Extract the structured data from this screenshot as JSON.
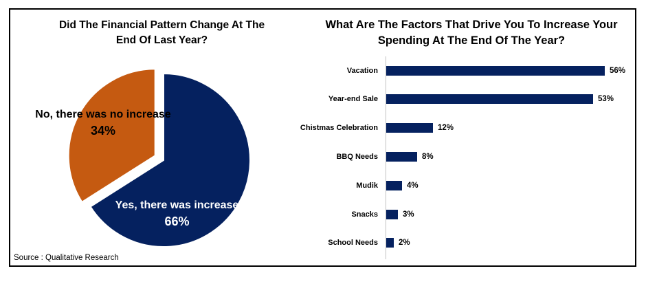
{
  "colors": {
    "navy": "#05215f",
    "orange": "#c55a11",
    "axis_gray": "#bfbfbf",
    "frame_border": "#000000",
    "background": "#ffffff",
    "pie_label_light": "#ffffff",
    "pie_label_dark": "#000000"
  },
  "footer": {
    "source_note": "Source : Qualitative Research"
  },
  "chart_data": [
    {
      "type": "pie",
      "title": "Did The Financial Pattern Change At The End Of Last Year?",
      "title_lines": [
        "Did The Financial Pattern Change At The",
        "End Of Last Year?"
      ],
      "direction": "clockwise",
      "start_angle_deg": 0,
      "legend": "none",
      "labels_on_slices": true,
      "slices": [
        {
          "label": "Yes, there was increase",
          "value": 66,
          "pct_label": "66%",
          "color": "#05215f",
          "exploded": false,
          "label_color": "#ffffff"
        },
        {
          "label": "No, there was no increase",
          "value": 34,
          "pct_label": "34%",
          "color": "#c55a11",
          "exploded": true,
          "label_color": "#000000"
        }
      ]
    },
    {
      "type": "bar",
      "orientation": "horizontal",
      "title": "What Are The Factors That Drive You To Increase Your Spending At The End Of The Year?",
      "title_lines": [
        "What Are The Factors That Drive You To Increase Your",
        "Spending At The End Of The Year?"
      ],
      "categories": [
        "Vacation",
        "Year-end Sale",
        "Chistmas Celebration",
        "BBQ Needs",
        "Mudik",
        "Snacks",
        "School Needs"
      ],
      "values": [
        56,
        53,
        12,
        8,
        4,
        3,
        2
      ],
      "value_labels": [
        "56%",
        "53%",
        "12%",
        "8%",
        "4%",
        "3%",
        "2%"
      ],
      "bar_color": "#05215f",
      "xlim": [
        0,
        60
      ],
      "grid": false,
      "legend": "none",
      "axis_line_color": "#bfbfbf",
      "data_labels": "outside-end"
    }
  ]
}
